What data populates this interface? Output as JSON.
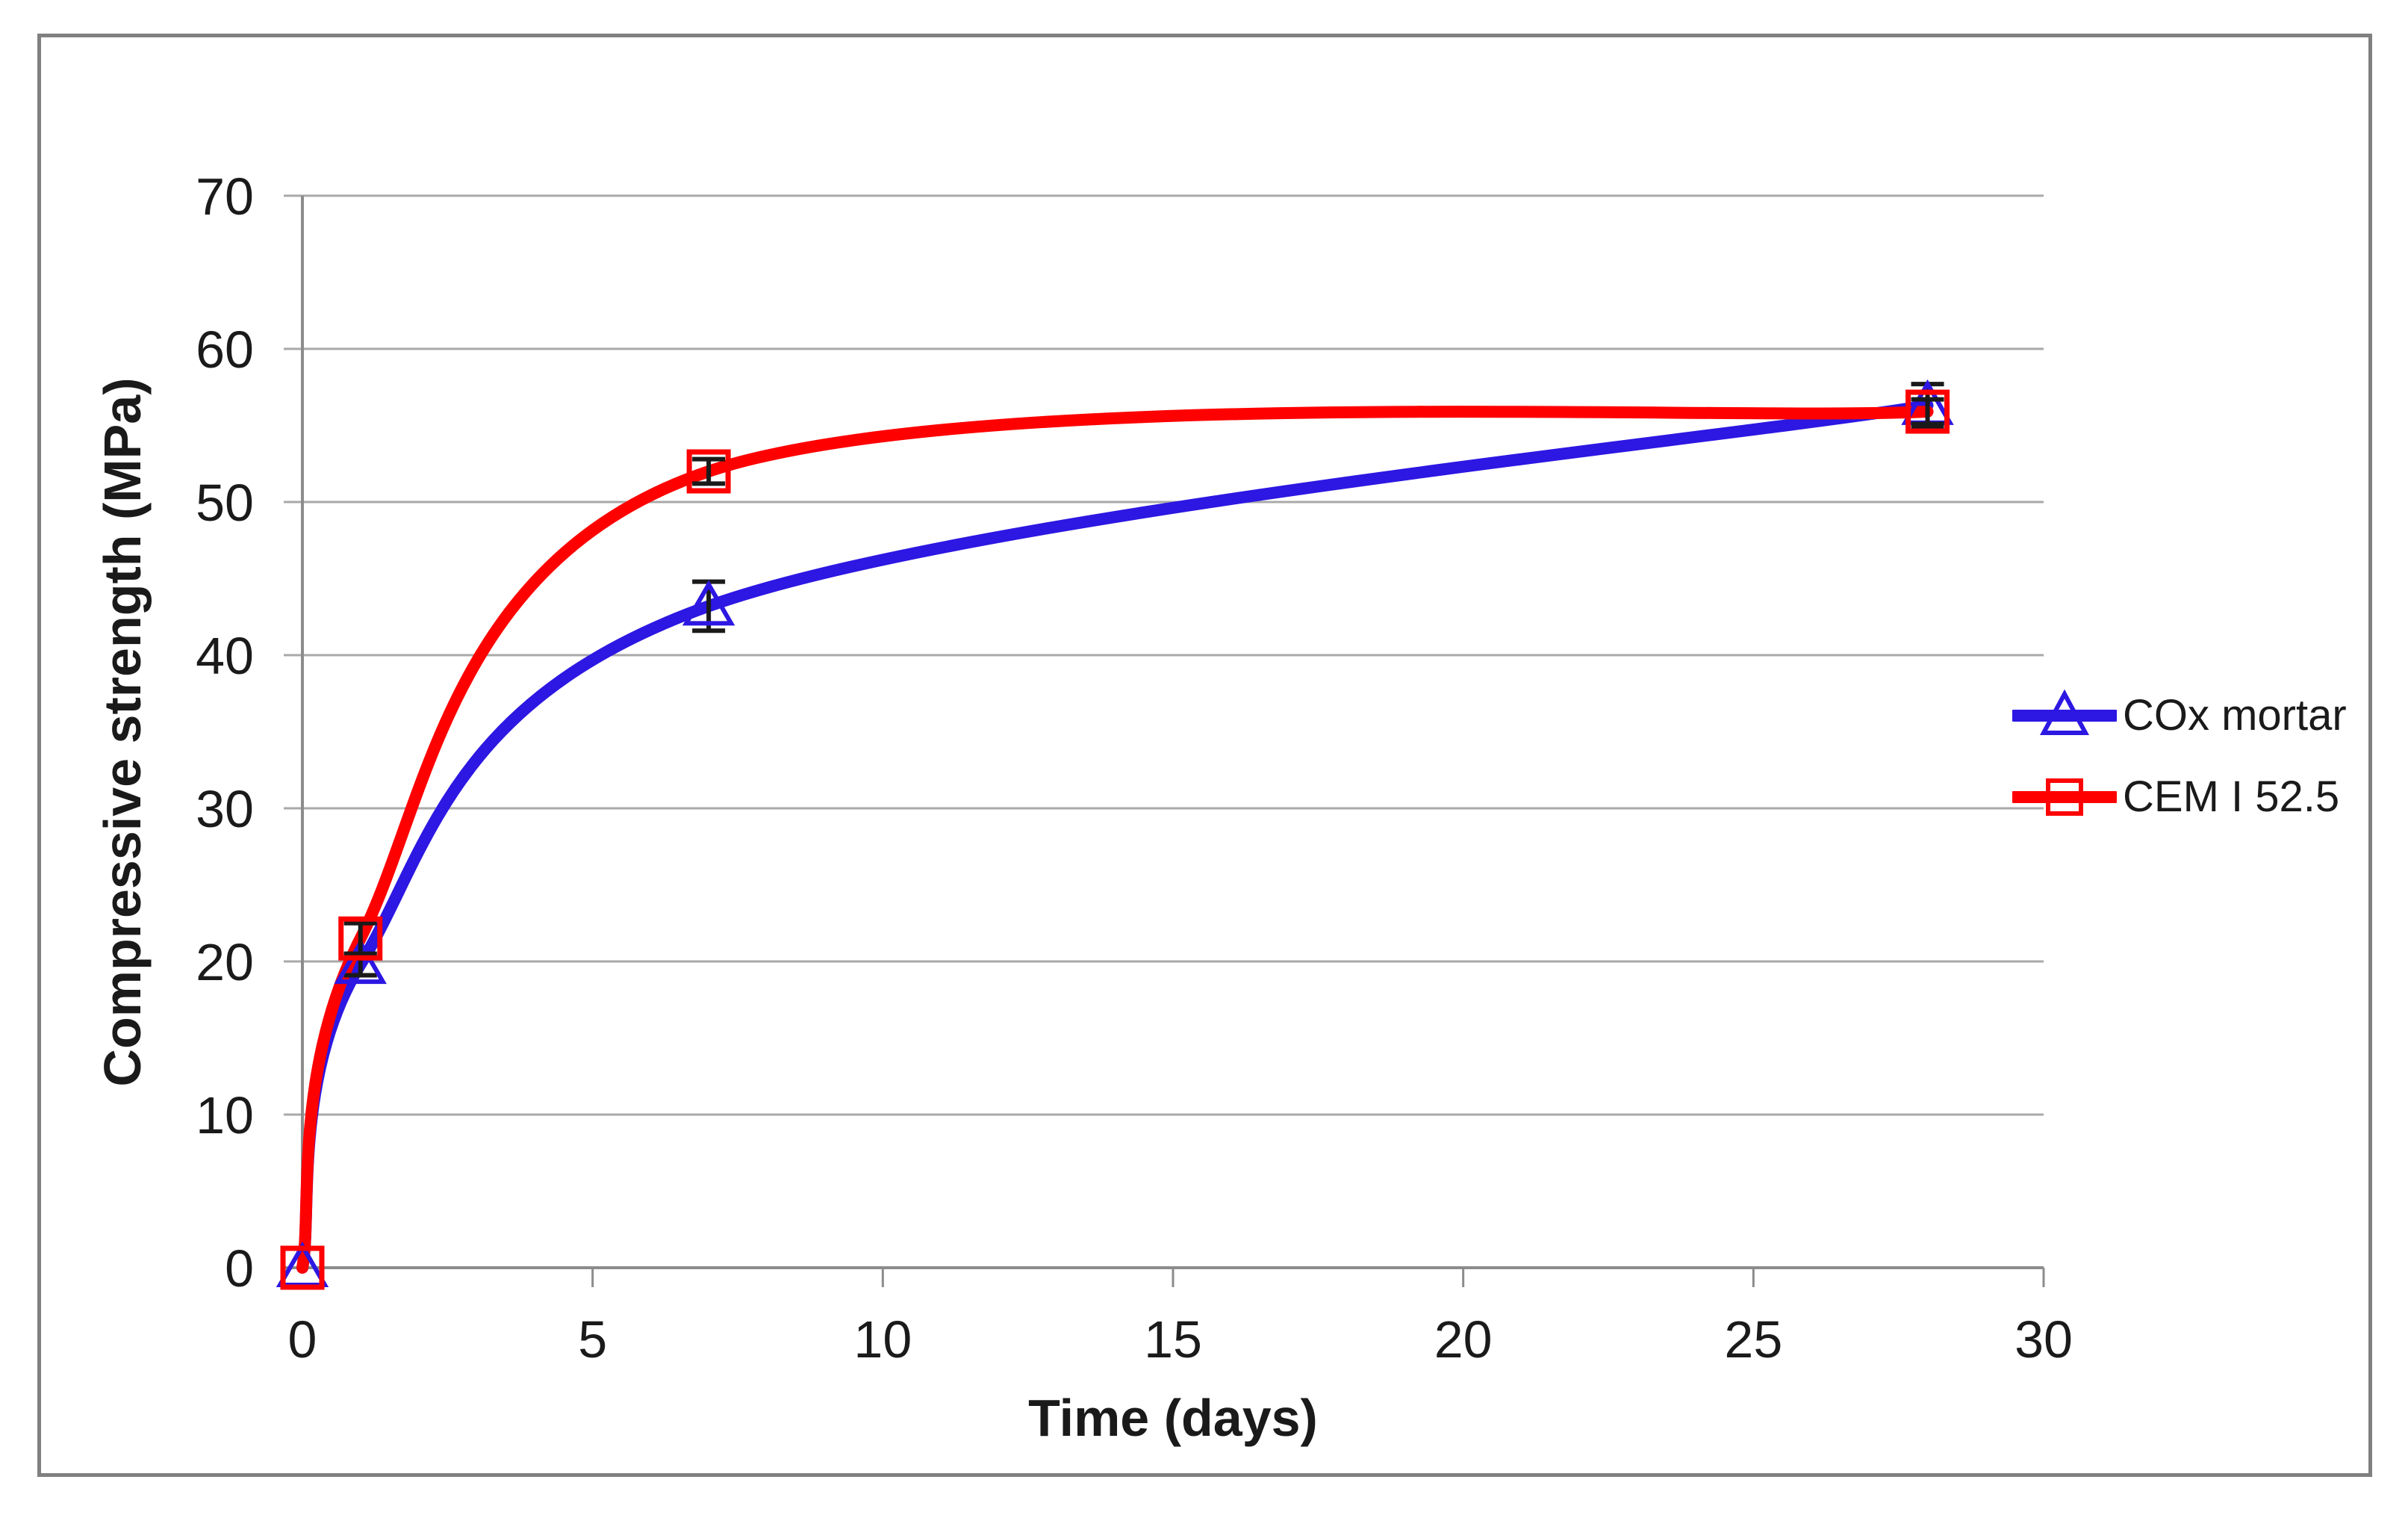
{
  "chart_data": {
    "type": "line",
    "title": "",
    "xlabel": "Time (days)",
    "ylabel": "Compressive strength (MPa)",
    "xlim": [
      0,
      30
    ],
    "ylim": [
      0,
      70
    ],
    "x_ticks": [
      0,
      5,
      10,
      15,
      20,
      25,
      30
    ],
    "y_ticks": [
      0,
      10,
      20,
      30,
      40,
      50,
      60,
      70
    ],
    "grid": "horizontal",
    "legend_position": "right",
    "smoothing": "excel-spline",
    "series": [
      {
        "name": "COx mortar",
        "color": "#2D17E2",
        "marker": "triangle",
        "x": [
          0,
          1,
          7,
          28
        ],
        "values": [
          0,
          19.8,
          43.2,
          56.3
        ],
        "error": [
          0,
          0.7,
          1.6,
          1.4
        ]
      },
      {
        "name": "CEM I 52.5",
        "color": "#FE0000",
        "marker": "square",
        "x": [
          0,
          1,
          7,
          28
        ],
        "values": [
          0,
          21.5,
          52.0,
          55.9
        ],
        "error": [
          0,
          1.0,
          0.8,
          0.8
        ]
      }
    ]
  },
  "colors": {
    "background": "#FFFFFF",
    "gridline": "#A9A9A9",
    "axis": "#8C8C8C",
    "frame_border": "#808080",
    "error_bar": "#1A1A1A",
    "text": "#1A1A1A"
  }
}
